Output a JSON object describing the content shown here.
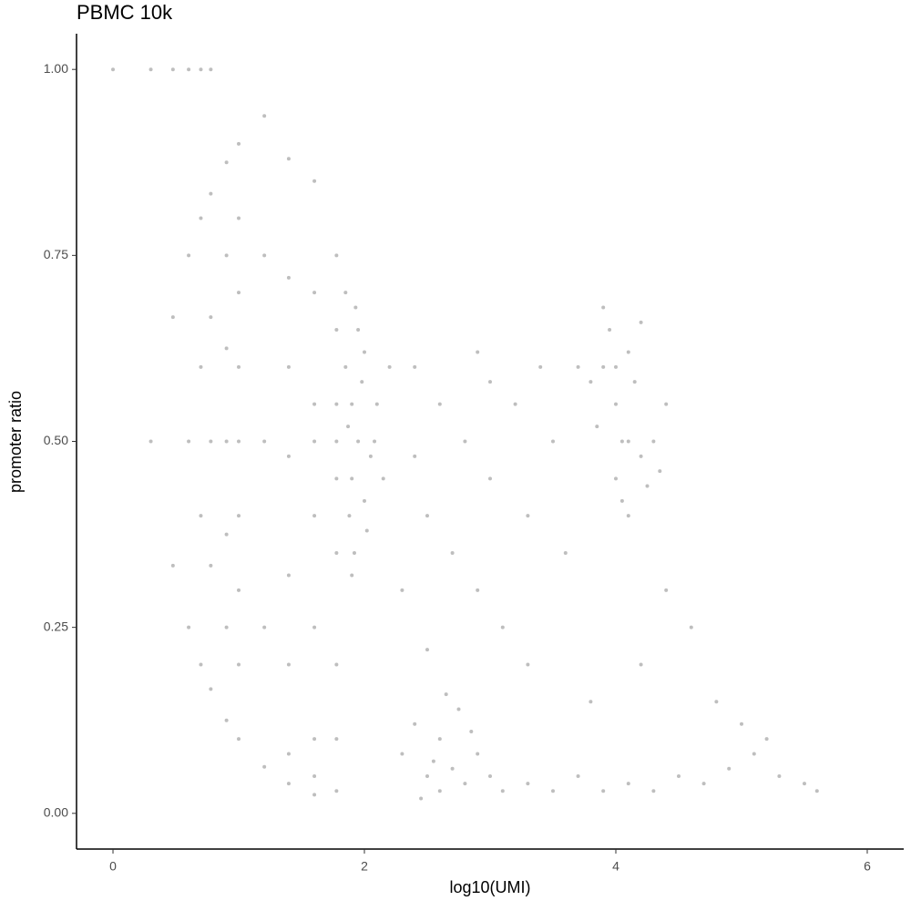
{
  "chart_data": {
    "type": "scatter",
    "title": "PBMC 10k",
    "x_label": "log10(UMI)",
    "y_label": "promoter ratio",
    "color": "#bebebe",
    "xlim": [
      -0.29,
      6.29
    ],
    "ylim": [
      -0.048,
      1.048
    ],
    "xticks": [
      0,
      2,
      4,
      6
    ],
    "yticks": [
      {
        "value": 0,
        "label": "0.00"
      },
      {
        "value": 0.25,
        "label": "0.25"
      },
      {
        "value": 0.5,
        "label": "0.50"
      },
      {
        "value": 0.75,
        "label": "0.75"
      },
      {
        "value": 1,
        "label": "1.00"
      }
    ],
    "x": [
      0,
      0.301,
      0.301,
      0.477,
      0.477,
      0.477,
      0.602,
      0.602,
      0.602,
      0.602,
      0.699,
      0.699,
      0.699,
      0.699,
      0.699,
      0.778,
      0.778,
      0.778,
      0.778,
      0.778,
      0.778,
      0.903,
      0.903,
      0.903,
      0.903,
      0.903,
      0.903,
      0.903,
      1.0,
      1.0,
      1.0,
      1.0,
      1.0,
      1.0,
      1.0,
      1.0,
      1.0,
      1.204,
      1.204,
      1.204,
      1.204,
      1.204,
      1.398,
      1.398,
      1.398,
      1.398,
      1.398,
      1.398,
      1.398,
      1.398,
      1.602,
      1.602,
      1.602,
      1.602,
      1.602,
      1.602,
      1.602,
      1.602,
      1.602,
      1.778,
      1.778,
      1.778,
      1.778,
      1.778,
      1.778,
      1.778,
      1.778,
      1.778,
      1.85,
      1.9,
      1.95,
      1.9,
      1.88,
      1.92,
      2.0,
      2.05,
      1.95,
      2.1,
      1.85,
      2.0,
      1.9,
      2.15,
      1.98,
      1.87,
      2.02,
      2.2,
      1.93,
      2.08,
      2.4,
      2.6,
      2.8,
      3.0,
      3.2,
      3.4,
      2.5,
      2.7,
      2.9,
      3.1,
      3.3,
      3.5,
      2.3,
      2.5,
      3.6,
      2.9,
      3.7,
      2.4,
      3.0,
      3.3,
      3.9,
      4.0,
      4.1,
      4.0,
      3.95,
      4.2,
      4.1,
      3.85,
      4.3,
      4.05,
      4.15,
      3.9,
      4.25,
      4.0,
      4.4,
      3.8,
      4.1,
      4.2,
      4.35,
      4.05,
      2.3,
      2.5,
      2.6,
      2.7,
      2.8,
      2.9,
      3.0,
      2.4,
      2.6,
      2.75,
      2.55,
      2.85,
      3.1,
      2.45,
      2.65,
      3.3,
      3.5,
      3.7,
      3.9,
      4.1,
      4.3,
      4.5,
      4.7,
      4.9,
      5.1,
      5.3,
      5.5,
      5.6,
      4.6,
      4.8,
      5.0,
      4.4,
      5.2,
      4.2,
      3.8
    ],
    "y": [
      1,
      1,
      0.5,
      1,
      0.667,
      0.333,
      1,
      0.75,
      0.5,
      0.25,
      1,
      0.8,
      0.6,
      0.4,
      0.2,
      1,
      0.833,
      0.667,
      0.5,
      0.333,
      0.167,
      0.875,
      0.75,
      0.625,
      0.5,
      0.375,
      0.25,
      0.125,
      0.9,
      0.8,
      0.7,
      0.6,
      0.5,
      0.4,
      0.3,
      0.2,
      0.1,
      0.9375,
      0.75,
      0.5,
      0.25,
      0.0625,
      0.88,
      0.72,
      0.6,
      0.48,
      0.32,
      0.2,
      0.08,
      0.04,
      0.85,
      0.7,
      0.55,
      0.5,
      0.4,
      0.25,
      0.1,
      0.05,
      0.025,
      0.75,
      0.65,
      0.55,
      0.5,
      0.45,
      0.35,
      0.2,
      0.1,
      0.03,
      0.6,
      0.55,
      0.5,
      0.45,
      0.4,
      0.35,
      0.62,
      0.48,
      0.65,
      0.55,
      0.7,
      0.42,
      0.32,
      0.45,
      0.58,
      0.52,
      0.38,
      0.6,
      0.68,
      0.5,
      0.6,
      0.55,
      0.5,
      0.45,
      0.55,
      0.6,
      0.4,
      0.35,
      0.3,
      0.25,
      0.4,
      0.5,
      0.3,
      0.22,
      0.35,
      0.62,
      0.6,
      0.48,
      0.58,
      0.2,
      0.6,
      0.55,
      0.5,
      0.45,
      0.65,
      0.48,
      0.62,
      0.52,
      0.5,
      0.42,
      0.58,
      0.68,
      0.44,
      0.6,
      0.55,
      0.58,
      0.4,
      0.66,
      0.46,
      0.5,
      0.08,
      0.05,
      0.1,
      0.06,
      0.04,
      0.08,
      0.05,
      0.12,
      0.03,
      0.14,
      0.07,
      0.11,
      0.03,
      0.02,
      0.16,
      0.04,
      0.03,
      0.05,
      0.03,
      0.04,
      0.03,
      0.05,
      0.04,
      0.06,
      0.08,
      0.05,
      0.04,
      0.03,
      0.25,
      0.15,
      0.12,
      0.3,
      0.1,
      0.2,
      0.15
    ]
  }
}
